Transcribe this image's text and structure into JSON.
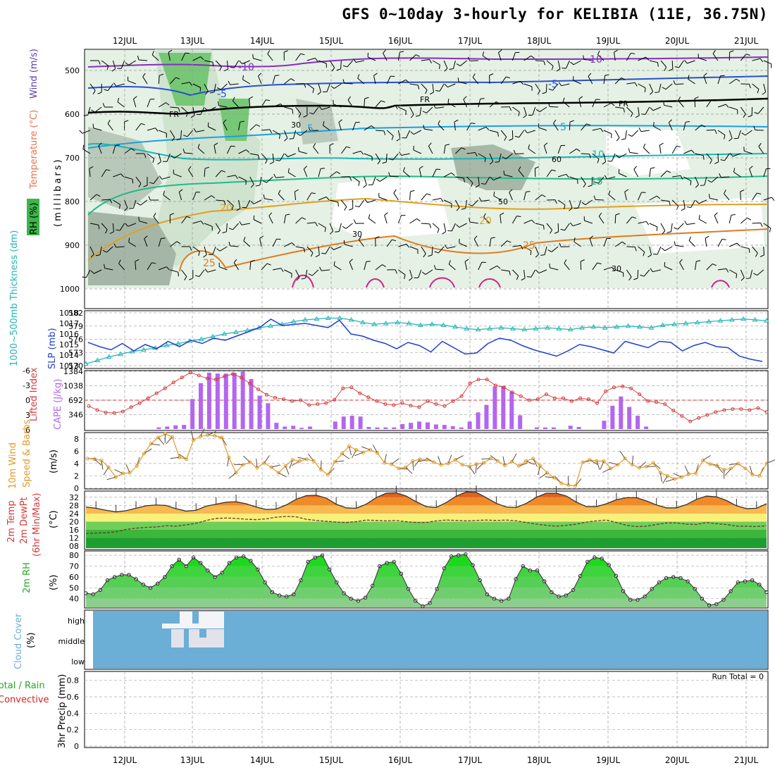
{
  "title": "GFS 0~10day 3-hourly for KELIBIA (11E, 36.75N)",
  "dates": [
    "12JUL",
    "13JUL",
    "14JUL",
    "15JUL",
    "16JUL",
    "17JUL",
    "18JUL",
    "19JUL",
    "20JUL",
    "21JUL"
  ],
  "run_total": "Run Total = 0",
  "colors": {
    "rh_fill": "#3cb64a",
    "temp_label": "#e8734a",
    "wind_label": "#5a3fb0",
    "slp_line": "#1f3fcc",
    "thick_line": "#22b5b5",
    "cape_bar": "#b366ee",
    "li_line": "#d43a3a",
    "wind10": "#e09a2a",
    "rh2m": "#22cc22",
    "cloud_bg": "#6baed6",
    "precip_total": "#22aa22",
    "precip_conv": "#dd2222"
  },
  "labels": {
    "p1_rh": "RH (%)",
    "p1_temp": "Temperature (°C)",
    "p1_wind": "Wind (m/s)",
    "p1_unit": "(millibars)",
    "p2_thick": "1000~500mb Thickness (dm)",
    "p2_slp": "SLP (mb)",
    "p3_li": "Lifted Index",
    "p3_cape": "CAPE (J/kg)",
    "p4_main": "10m Wind",
    "p4_sub": "Speed & Barbs",
    "p4_unit": "(m/s)",
    "p5_a": "2m Temp",
    "p5_b": "2m DewPt",
    "p5_c": "(6hr Min/Max)",
    "p5_unit": "(°C)",
    "p6_a": "2m RH",
    "p6_unit": "(%)",
    "p7_a": "Cloud Cover",
    "p7_unit": "(%)",
    "p7_high": "high",
    "p7_mid": "middle",
    "p7_low": "low",
    "p8_total": "Total / Rain",
    "p8_conv": "Convective",
    "p8_main": "3hr Precip (mm)"
  },
  "chart_data": [
    {
      "type": "heatmap",
      "panel": "upper-air",
      "ylabel": "(millibars)",
      "y_ticks": [
        500,
        600,
        700,
        800,
        900,
        1000
      ],
      "temperature_contour_labels": [
        "-10",
        "-5",
        "FR",
        "5",
        "10",
        "15",
        "20",
        "25"
      ],
      "extra_labels": [
        "30",
        "30",
        "30",
        "50",
        "60"
      ]
    },
    {
      "type": "line",
      "panel": "slp-thickness",
      "y_left_ticks": [
        570,
        573,
        576,
        579,
        582
      ],
      "y_right_ticks": [
        1013,
        1014,
        1015,
        1016,
        1017,
        1018
      ],
      "series": [
        {
          "name": "1000~500mb Thickness (dm)",
          "axis": "left",
          "values": [
            570.4,
            571.2,
            572.0,
            572.6,
            573.2,
            573.6,
            574.0,
            574.6,
            575.0,
            575.6,
            576.0,
            576.6,
            577.2,
            577.6,
            578.0,
            578.6,
            579.0,
            579.4,
            580.0,
            580.4,
            580.6,
            580.8,
            580.8,
            580.4,
            579.8,
            579.4,
            579.6,
            579.8,
            579.6,
            579.2,
            579.4,
            579.2,
            578.8,
            578.4,
            578.2,
            578.4,
            578.6,
            578.4,
            578.2,
            578.4,
            578.6,
            578.4,
            578.2,
            578.6,
            578.8,
            578.6,
            578.8,
            579.0,
            578.8,
            578.6,
            579.2,
            579.4,
            579.6,
            579.8,
            580.0,
            580.2,
            580.4,
            580.6,
            580.4,
            580.2
          ]
        },
        {
          "name": "SLP (mb)",
          "axis": "right",
          "values": [
            1015.2,
            1014.8,
            1014.5,
            1015.1,
            1014.4,
            1015.0,
            1014.6,
            1015.3,
            1014.8,
            1015.4,
            1015.1,
            1015.6,
            1015.4,
            1015.8,
            1016.2,
            1016.6,
            1017.4,
            1016.8,
            1016.9,
            1017.0,
            1016.8,
            1016.6,
            1017.3,
            1016.0,
            1015.8,
            1015.4,
            1015.1,
            1014.6,
            1015.2,
            1014.9,
            1014.3,
            1015.3,
            1014.7,
            1014.1,
            1014.2,
            1015.1,
            1015.6,
            1015.4,
            1014.9,
            1014.5,
            1014.2,
            1013.9,
            1014.4,
            1015.0,
            1014.8,
            1014.5,
            1014.2,
            1015.3,
            1015.0,
            1014.7,
            1015.3,
            1015.2,
            1014.4,
            1014.9,
            1015.2,
            1014.8,
            1014.7,
            1013.9,
            1013.6,
            1013.4
          ]
        }
      ]
    },
    {
      "type": "bar",
      "panel": "cape-lifted-index",
      "y_left_ticks": [
        -6,
        -3,
        0,
        3,
        6
      ],
      "y_right_ticks": [
        346,
        692,
        1038,
        1384
      ],
      "series": [
        {
          "name": "CAPE (J/kg)",
          "axis": "right",
          "values": [
            0,
            0,
            0,
            0,
            0,
            0,
            0,
            0,
            40,
            60,
            90,
            100,
            720,
            1100,
            1350,
            1330,
            1330,
            1350,
            1380,
            1200,
            800,
            620,
            150,
            60,
            80,
            30,
            60,
            0,
            0,
            180,
            300,
            320,
            300,
            50,
            40,
            40,
            40,
            120,
            150,
            180,
            160,
            110,
            100,
            70,
            40,
            180,
            400,
            580,
            1020,
            1030,
            890,
            330,
            0,
            40,
            40,
            40,
            0,
            80,
            50,
            0,
            0,
            200,
            560,
            780,
            530,
            320,
            60,
            0,
            0,
            0,
            0,
            0,
            0,
            0,
            0,
            0,
            0,
            0,
            0,
            0,
            0
          ]
        },
        {
          "name": "Lifted Index",
          "axis": "left",
          "values": [
            1.2,
            2.0,
            2.5,
            2.6,
            2.3,
            1.4,
            0.6,
            -0.4,
            -1.4,
            -2.4,
            -3.6,
            -4.6,
            -5.6,
            -5.0,
            -4.4,
            -4.2,
            -4.8,
            -5.3,
            -4.6,
            -3.4,
            -2.2,
            -1.1,
            -0.5,
            -0.2,
            0.2,
            0.0,
            1.0,
            0.8,
            0.6,
            -0.1,
            -2.4,
            -2.6,
            -1.4,
            -0.6,
            0.2,
            0.8,
            1.0,
            0.6,
            1.1,
            1.4,
            0.2,
            0.8,
            1.2,
            0.2,
            -0.8,
            -3.4,
            -4.2,
            -4.2,
            -3.0,
            -2.6,
            -1.6,
            -0.8,
            0.0,
            -0.2,
            -1.2,
            -0.4,
            -0.4,
            0.2,
            -0.4,
            -0.2,
            0.6,
            -1.8,
            -2.6,
            -2.8,
            -2.4,
            -1.2,
            0.2,
            0.4,
            0.8,
            2.1,
            3.2,
            4.3,
            3.6,
            3.0,
            2.4,
            2.0,
            1.8,
            1.8,
            2.0,
            1.6,
            2.4
          ]
        }
      ]
    },
    {
      "type": "line",
      "panel": "10m-wind",
      "y_ticks": [
        0,
        2,
        4,
        6,
        8
      ],
      "series": [
        {
          "name": "Speed",
          "values": [
            4.8,
            4.7,
            4.5,
            3.4,
            1.8,
            2.4,
            2.5,
            3.6,
            5.6,
            7.2,
            8.2,
            8.8,
            8.3,
            5.0,
            4.7,
            7.8,
            8.4,
            8.6,
            8.5,
            8.2,
            5.0,
            2.5,
            3.8,
            4.2,
            3.3,
            4.1,
            3.4,
            2.5,
            3.6,
            4.6,
            4.4,
            4.7,
            4.4,
            3.0,
            2.2,
            4.3,
            5.6,
            6.8,
            6.2,
            5.8,
            6.2,
            5.7,
            4.1,
            3.9,
            3.2,
            3.4,
            4.4,
            4.7,
            4.6,
            4.2,
            3.8,
            4.0,
            4.6,
            3.8,
            3.5,
            3.9,
            4.1,
            4.8,
            4.4,
            3.7,
            4.3,
            3.6,
            4.4,
            4.8,
            3.6,
            2.5,
            1.7,
            0.8,
            0.5,
            0.4,
            4.2,
            4.6,
            4.4,
            4.4,
            3.2,
            3.8,
            4.8,
            3.8,
            3.3,
            3.5,
            4.1,
            2.5,
            2.0,
            1.5,
            1.8,
            2.3,
            2.4,
            4.5,
            3.9,
            3.6,
            3.0,
            3.2,
            4.0,
            3.2,
            2.2,
            2.0,
            4.0
          ]
        }
      ]
    },
    {
      "type": "area",
      "panel": "2m-temp-dewpt",
      "y_ticks": [
        8,
        12,
        16,
        20,
        24,
        28,
        32
      ],
      "tick_labels_printed": [
        "32",
        "28",
        "24",
        "20",
        "16",
        "12",
        "08"
      ],
      "series": [
        {
          "name": "2m Temp",
          "values": [
            27.2,
            26.6,
            25.6,
            24.8,
            25.4,
            26.6,
            27.8,
            28.2,
            28.0,
            26.4,
            25.2,
            25.6,
            27.6,
            28.6,
            29.6,
            29.8,
            28.8,
            27.2,
            26.0,
            26.2,
            28.2,
            31.0,
            32.8,
            33.0,
            31.6,
            28.6,
            26.8,
            26.6,
            28.6,
            31.8,
            34.0,
            34.2,
            32.6,
            29.8,
            27.4,
            27.0,
            29.4,
            32.6,
            34.6,
            34.4,
            31.8,
            29.0,
            27.2,
            27.0,
            29.0,
            32.0,
            34.0,
            34.0,
            32.6,
            29.6,
            27.4,
            27.4,
            28.8,
            30.8,
            31.8,
            31.8,
            30.2,
            28.2,
            26.8,
            26.8,
            28.4,
            31.0,
            32.6,
            32.2,
            30.4,
            27.8,
            26.4,
            26.6,
            28.8
          ]
        },
        {
          "name": "2m DewPt",
          "values": [
            14.2,
            14.4,
            14.6,
            15.0,
            16.2,
            16.8,
            17.2,
            17.4,
            18.0,
            17.8,
            18.4,
            19.2,
            20.6,
            21.6,
            21.8,
            21.6,
            21.2,
            21.0,
            21.4,
            22.2,
            22.6,
            22.4,
            21.2,
            20.6,
            20.2,
            19.8,
            19.6,
            20.0,
            20.8,
            20.6,
            20.4,
            20.6,
            20.0,
            19.6,
            19.6,
            20.4,
            20.8,
            20.6,
            20.4,
            20.6,
            20.8,
            20.6,
            20.8,
            20.4,
            19.6,
            18.8,
            18.2,
            17.8,
            18.2,
            18.8,
            19.8,
            20.4,
            20.8,
            19.6,
            18.2,
            17.6,
            17.8,
            18.6,
            19.4,
            19.4,
            18.8,
            18.6,
            19.6,
            19.0,
            18.6,
            17.8,
            17.8,
            17.6,
            18.0
          ]
        }
      ]
    },
    {
      "type": "area",
      "panel": "2m-rh",
      "y_ticks": [
        40,
        50,
        60,
        70,
        80
      ],
      "series": [
        {
          "name": "2m RH",
          "values": [
            45,
            44,
            48,
            57,
            60,
            62,
            62,
            58,
            53,
            50,
            54,
            60,
            70,
            76,
            70,
            78,
            73,
            66,
            60,
            64,
            73,
            78,
            79,
            75,
            67,
            55,
            46,
            43,
            42,
            44,
            57,
            74,
            78,
            80,
            67,
            55,
            45,
            40,
            38,
            41,
            52,
            70,
            73,
            74,
            63,
            49,
            38,
            33,
            36,
            49,
            68,
            79,
            80,
            81,
            71,
            57,
            44,
            40,
            38,
            40,
            58,
            70,
            66,
            66,
            56,
            46,
            42,
            43,
            48,
            61,
            74,
            78,
            77,
            71,
            61,
            47,
            39,
            39,
            42,
            49,
            55,
            59,
            60,
            59,
            56,
            49,
            40,
            34,
            35,
            39,
            47,
            55,
            56,
            57,
            53,
            46
          ]
        }
      ]
    },
    {
      "type": "heatmap",
      "panel": "cloud-cover",
      "categories": [
        "high",
        "middle",
        "low"
      ]
    },
    {
      "type": "bar",
      "panel": "3hr-precip",
      "y_ticks": [
        0,
        0.2,
        0.4,
        0.6,
        0.8
      ],
      "values": []
    }
  ]
}
